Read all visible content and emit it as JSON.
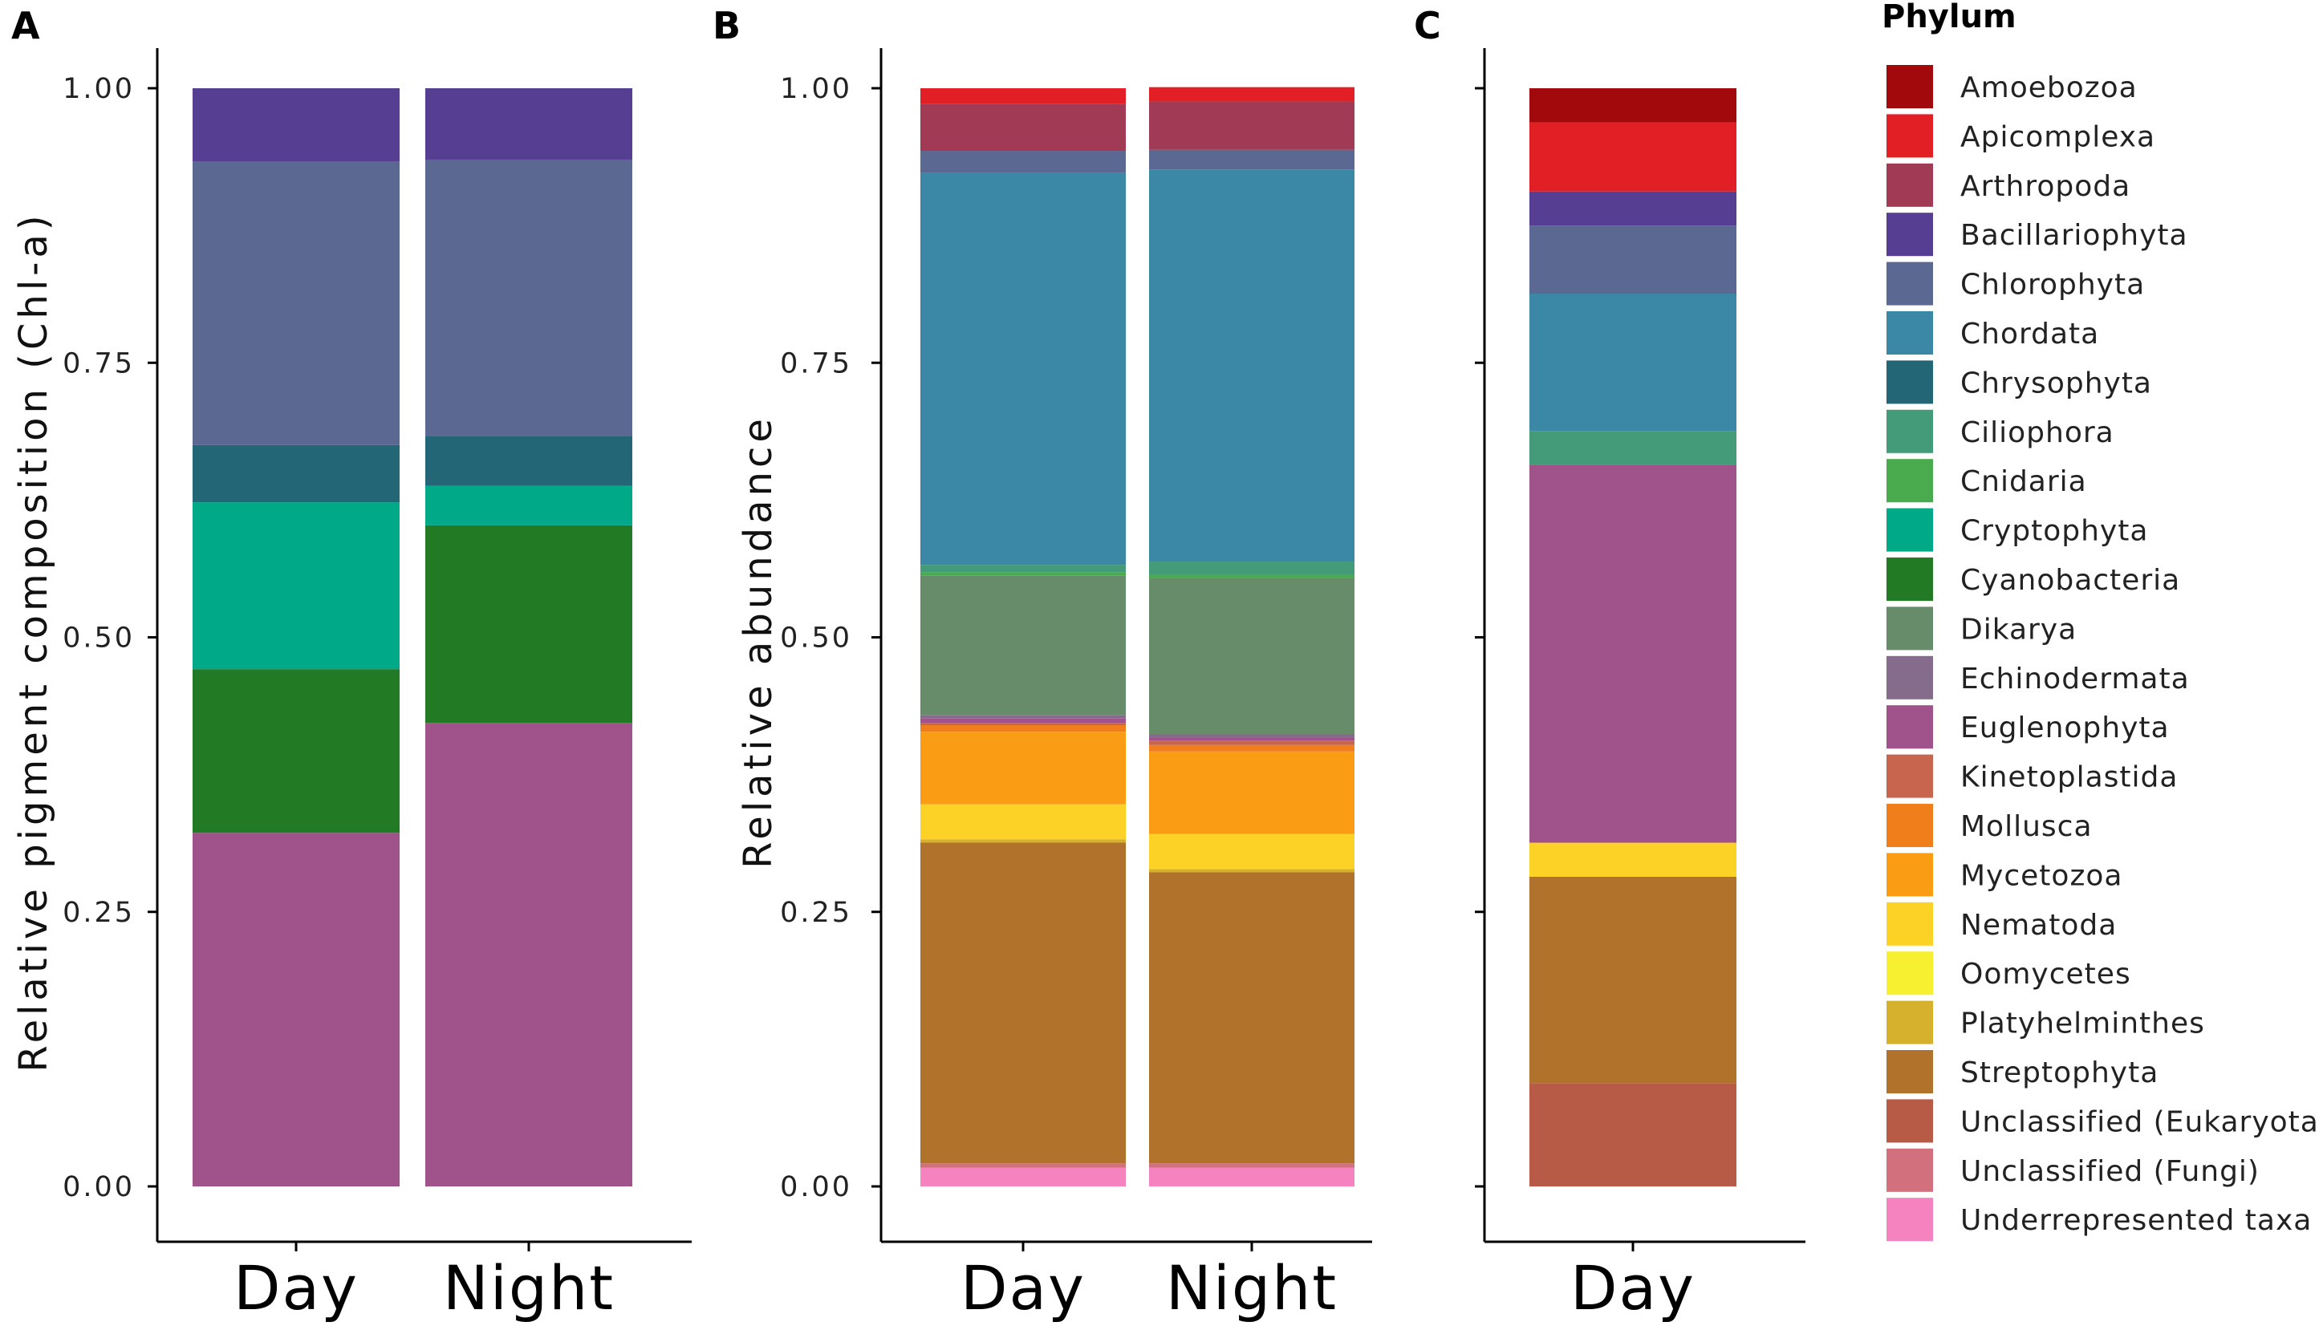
{
  "figure": {
    "colors": {
      "Amoebozoa": "#a1090c",
      "Apicomplexa": "#e21f24",
      "Arthropoda": "#a03a55",
      "Bacillariophyta": "#563e93",
      "Chlorophyta": "#5b6892",
      "Chordata": "#3b87a6",
      "Chrysophyta": "#236776",
      "Ciliophora": "#439b7a",
      "Cnidaria": "#4aaa4e",
      "Cryptophyta": "#00a987",
      "Cyanobacteria": "#237a24",
      "Dikarya": "#668c69",
      "Echinodermata": "#866c8c",
      "Euglenophyta": "#a0528b",
      "Kinetoplastida": "#c7654f",
      "Mollusca": "#f07e1a",
      "Mycetozoa": "#fb9d14",
      "Nematoda": "#fdd227",
      "Oomycetes": "#f6f031",
      "Platyhelminthes": "#d6b12e",
      "Streptophyta": "#b1722b",
      "Unclassified (Eukaryota)": "#b75b47",
      "Unclassified (Fungi)": "#d2707e",
      "Underrepresented taxa": "#f583bf"
    }
  },
  "chart_data": [
    {
      "panel": "A",
      "type": "bar",
      "stacked": true,
      "ylabel": "Relative pigment composition (Chl-a)",
      "xlabel": "",
      "categories": [
        "Day",
        "Night"
      ],
      "ylim": [
        0,
        1
      ],
      "yticks": [
        "0.00",
        "0.25",
        "0.50",
        "0.75",
        "1.00"
      ],
      "series": [
        {
          "name": "Euglenophyta",
          "values": [
            0.322,
            0.422
          ]
        },
        {
          "name": "Cyanobacteria",
          "values": [
            0.149,
            0.18
          ]
        },
        {
          "name": "Cryptophyta",
          "values": [
            0.152,
            0.036
          ]
        },
        {
          "name": "Chrysophyta",
          "values": [
            0.052,
            0.045
          ]
        },
        {
          "name": "Chlorophyta",
          "values": [
            0.258,
            0.252
          ]
        },
        {
          "name": "Bacillariophyta",
          "values": [
            0.067,
            0.065
          ]
        }
      ]
    },
    {
      "panel": "B",
      "type": "bar",
      "stacked": true,
      "ylabel": "Relative abundance",
      "xlabel": "",
      "categories": [
        "Day",
        "Night"
      ],
      "ylim": [
        0,
        1
      ],
      "yticks": [
        "0.00",
        "0.25",
        "0.50",
        "0.75",
        "1.00"
      ],
      "series": [
        {
          "name": "Underrepresented taxa",
          "values": [
            0.017,
            0.017
          ]
        },
        {
          "name": "Unclassified (Fungi)",
          "values": [
            0.004,
            0.004
          ]
        },
        {
          "name": "Streptophyta",
          "values": [
            0.292,
            0.265
          ]
        },
        {
          "name": "Platyhelminthes",
          "values": [
            0.003,
            0.003
          ]
        },
        {
          "name": "Nematoda",
          "values": [
            0.032,
            0.032
          ]
        },
        {
          "name": "Mycetozoa",
          "values": [
            0.066,
            0.075
          ]
        },
        {
          "name": "Mollusca",
          "values": [
            0.006,
            0.006
          ]
        },
        {
          "name": "Kinetoplastida",
          "values": [
            0.002,
            0.004
          ]
        },
        {
          "name": "Euglenophyta",
          "values": [
            0.004,
            0.003
          ]
        },
        {
          "name": "Echinodermata",
          "values": [
            0.003,
            0.003
          ]
        },
        {
          "name": "Dikarya",
          "values": [
            0.127,
            0.142
          ]
        },
        {
          "name": "Cnidaria",
          "values": [
            0.003,
            0.003
          ]
        },
        {
          "name": "Ciliophora",
          "values": [
            0.007,
            0.012
          ]
        },
        {
          "name": "Chordata",
          "values": [
            0.357,
            0.357
          ]
        },
        {
          "name": "Chlorophyta",
          "values": [
            0.02,
            0.018
          ]
        },
        {
          "name": "Arthropoda",
          "values": [
            0.043,
            0.044
          ]
        },
        {
          "name": "Apicomplexa",
          "values": [
            0.014,
            0.013
          ]
        }
      ]
    },
    {
      "panel": "C",
      "type": "bar",
      "stacked": true,
      "ylabel": "",
      "xlabel": "",
      "categories": [
        "Day"
      ],
      "ylim": [
        0,
        1
      ],
      "yticks": [],
      "series": [
        {
          "name": "Unclassified (Eukaryota)",
          "values": [
            0.094
          ]
        },
        {
          "name": "Streptophyta",
          "values": [
            0.188
          ]
        },
        {
          "name": "Nematoda",
          "values": [
            0.031
          ]
        },
        {
          "name": "Euglenophyta",
          "values": [
            0.344
          ]
        },
        {
          "name": "Ciliophora",
          "values": [
            0.031
          ]
        },
        {
          "name": "Chordata",
          "values": [
            0.125
          ]
        },
        {
          "name": "Chlorophyta",
          "values": [
            0.062
          ]
        },
        {
          "name": "Bacillariophyta",
          "values": [
            0.031
          ]
        },
        {
          "name": "Apicomplexa",
          "values": [
            0.063
          ]
        },
        {
          "name": "Amoebozoa",
          "values": [
            0.031
          ]
        }
      ]
    }
  ],
  "legend": {
    "title": "Phylum",
    "items": [
      "Amoebozoa",
      "Apicomplexa",
      "Arthropoda",
      "Bacillariophyta",
      "Chlorophyta",
      "Chordata",
      "Chrysophyta",
      "Ciliophora",
      "Cnidaria",
      "Cryptophyta",
      "Cyanobacteria",
      "Dikarya",
      "Echinodermata",
      "Euglenophyta",
      "Kinetoplastida",
      "Mollusca",
      "Mycetozoa",
      "Nematoda",
      "Oomycetes",
      "Platyhelminthes",
      "Streptophyta",
      "Unclassified (Eukaryota)",
      "Unclassified (Fungi)",
      "Underrepresented taxa"
    ]
  }
}
